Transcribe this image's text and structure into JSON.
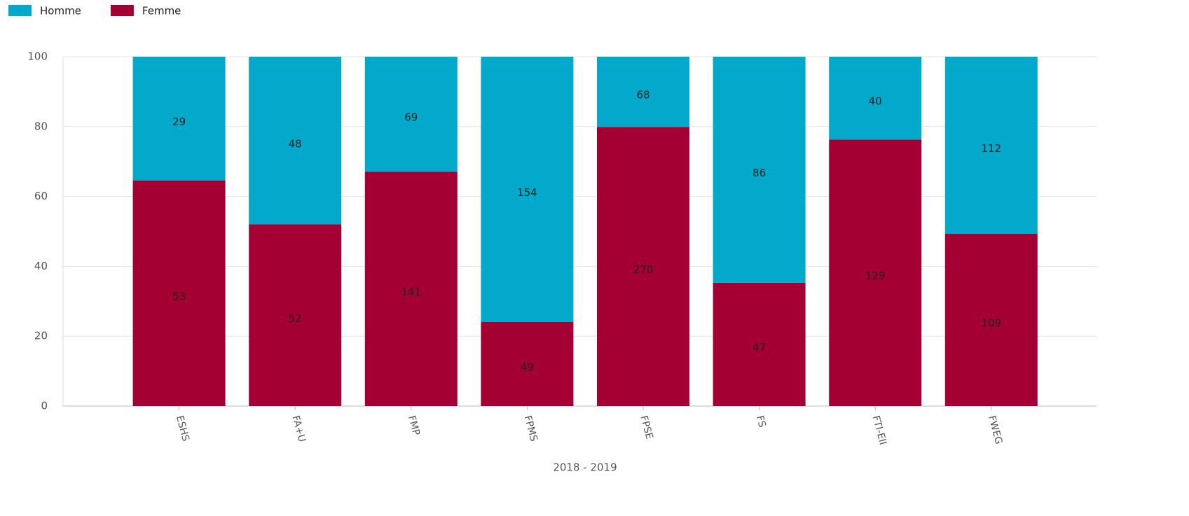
{
  "chart_data": {
    "type": "stacked100",
    "x_label": "2018 - 2019",
    "categories": [
      "ESHS",
      "FA+U",
      "FMP",
      "FPMS",
      "FPSE",
      "FS",
      "FTI-EII",
      "FWEG"
    ],
    "series": [
      {
        "name": "Homme",
        "color": "#02a9cb",
        "values": [
          35.4,
          48,
          32.9,
          75.9,
          20.1,
          64.7,
          23.7,
          50.7
        ],
        "counts": [
          29,
          48,
          69,
          154,
          68,
          86,
          40,
          112
        ]
      },
      {
        "name": "Femme",
        "color": "#a50034",
        "values": [
          64.6,
          52,
          67.1,
          24.1,
          79.9,
          35.3,
          76.3,
          49.3
        ],
        "counts": [
          53,
          52,
          141,
          49,
          270,
          47,
          129,
          109
        ]
      }
    ],
    "ylim": [
      0,
      100
    ],
    "yticks": [
      0,
      20,
      40,
      60,
      80,
      100
    ],
    "grid": true,
    "legend": "top-left"
  }
}
